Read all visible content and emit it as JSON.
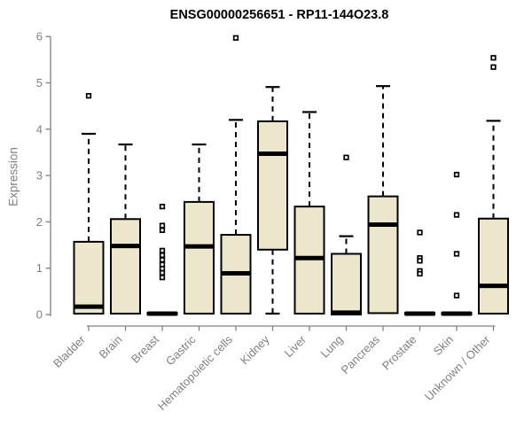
{
  "chart_data": {
    "type": "boxplot",
    "title": "ENSG00000256651 - RP11-144O23.8",
    "ylabel": "Expression",
    "xlabel": "",
    "ylim": [
      0,
      6
    ],
    "yticks": [
      0,
      1,
      2,
      3,
      4,
      5,
      6
    ],
    "grid": false,
    "legend": null,
    "categories": [
      "Bladder",
      "Brain",
      "Breast",
      "Gastric",
      "Hematopoietic cells",
      "Kidney",
      "Liver",
      "Lung",
      "Pancreas",
      "Prostate",
      "Skin",
      "Unknown / Other"
    ],
    "boxes": [
      {
        "label": "Bladder",
        "whislo": 0.02,
        "q1": 0.02,
        "med": 0.17,
        "q3": 1.57,
        "whishi": 3.9,
        "outliers": [
          4.72
        ]
      },
      {
        "label": "Brain",
        "whislo": 0.02,
        "q1": 0.02,
        "med": 1.48,
        "q3": 2.06,
        "whishi": 3.67,
        "outliers": []
      },
      {
        "label": "Breast",
        "whislo": 0.0,
        "q1": 0.0,
        "med": 0.02,
        "q3": 0.04,
        "whishi": 0.04,
        "outliers": [
          2.33,
          1.92,
          1.82,
          1.38,
          1.28,
          1.18,
          1.08,
          0.99,
          0.9,
          0.8
        ]
      },
      {
        "label": "Gastric",
        "whislo": 0.02,
        "q1": 0.02,
        "med": 1.47,
        "q3": 2.43,
        "whishi": 3.67,
        "outliers": []
      },
      {
        "label": "Hematopoietic cells",
        "whislo": 0.02,
        "q1": 0.02,
        "med": 0.89,
        "q3": 1.72,
        "whishi": 4.2,
        "outliers": [
          5.97
        ]
      },
      {
        "label": "Kidney",
        "whislo": 0.02,
        "q1": 1.4,
        "med": 3.47,
        "q3": 4.17,
        "whishi": 4.91,
        "outliers": []
      },
      {
        "label": "Liver",
        "whislo": 0.02,
        "q1": 0.02,
        "med": 1.22,
        "q3": 2.33,
        "whishi": 4.37,
        "outliers": []
      },
      {
        "label": "Lung",
        "whislo": 0.0,
        "q1": 0.0,
        "med": 0.04,
        "q3": 1.31,
        "whishi": 1.69,
        "outliers": [
          3.39
        ]
      },
      {
        "label": "Pancreas",
        "whislo": 0.03,
        "q1": 0.03,
        "med": 1.94,
        "q3": 2.55,
        "whishi": 4.93,
        "outliers": []
      },
      {
        "label": "Prostate",
        "whislo": 0.0,
        "q1": 0.0,
        "med": 0.02,
        "q3": 0.04,
        "whishi": 0.04,
        "outliers": [
          1.77,
          1.22,
          1.16,
          0.94,
          0.88
        ]
      },
      {
        "label": "Skin",
        "whislo": 0.0,
        "q1": 0.0,
        "med": 0.02,
        "q3": 0.04,
        "whishi": 0.04,
        "outliers": [
          3.02,
          2.15,
          1.31,
          0.41
        ]
      },
      {
        "label": "Unknown / Other",
        "whislo": 0.02,
        "q1": 0.02,
        "med": 0.62,
        "q3": 2.07,
        "whishi": 4.18,
        "outliers": [
          5.54,
          5.34
        ]
      }
    ],
    "colors": {
      "box_fill": "#ece7cc",
      "box_stroke": "#000000",
      "median": "#000000",
      "whisker": "#000000",
      "outlier_fill": "#ffffff",
      "axis_line": "#7f7f7f",
      "axis_text": "#808080",
      "title_text": "#000000",
      "background": "#ffffff"
    }
  }
}
